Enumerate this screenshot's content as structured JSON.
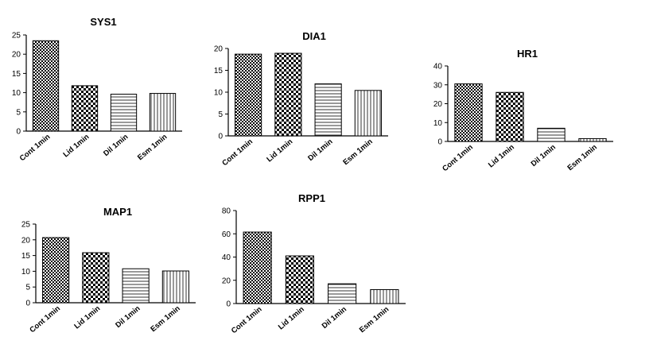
{
  "chart_data": [
    {
      "type": "bar",
      "title": "SYS1",
      "categories": [
        "Cont 1min",
        "Lid 1min",
        "Dil 1min",
        "Esm 1min"
      ],
      "values": [
        23.5,
        11.8,
        9.6,
        9.8
      ],
      "ylim": [
        0,
        25
      ],
      "yticks": [
        "0",
        "5",
        "10",
        "15",
        "20",
        "25"
      ],
      "fills": [
        "dense-check",
        "checker",
        "horizontal-lines",
        "vertical-lines"
      ],
      "grid": false
    },
    {
      "type": "bar",
      "title": "DIA1",
      "categories": [
        "Cont 1min",
        "Lid 1min",
        "Dil 1min",
        "Esm 1min"
      ],
      "values": [
        18.7,
        18.9,
        11.9,
        10.4
      ],
      "ylim": [
        0,
        20
      ],
      "yticks": [
        "0",
        "5",
        "10",
        "15",
        "20"
      ],
      "fills": [
        "dense-check",
        "checker",
        "horizontal-lines",
        "vertical-lines"
      ],
      "grid": false
    },
    {
      "type": "bar",
      "title": "HR1",
      "categories": [
        "Cont 1min",
        "Lid 1min",
        "Dil 1min",
        "Esm 1min"
      ],
      "values": [
        30.5,
        26.0,
        7.0,
        1.5
      ],
      "ylim": [
        0,
        40
      ],
      "yticks": [
        "0",
        "10",
        "20",
        "30",
        "40"
      ],
      "fills": [
        "dense-check",
        "checker",
        "horizontal-lines",
        "vertical-lines"
      ],
      "grid": false
    },
    {
      "type": "bar",
      "title": "MAP1",
      "categories": [
        "Cont 1min",
        "Lid 1min",
        "Dil 1min",
        "Esm 1min"
      ],
      "values": [
        20.7,
        15.9,
        10.8,
        10.1
      ],
      "ylim": [
        0,
        25
      ],
      "yticks": [
        "0",
        "5",
        "10",
        "15",
        "20",
        "25"
      ],
      "fills": [
        "dense-check",
        "checker",
        "horizontal-lines",
        "vertical-lines"
      ],
      "grid": false
    },
    {
      "type": "bar",
      "title": "RPP1",
      "categories": [
        "Cont 1min",
        "Lid 1min",
        "Dil 1min",
        "Esm 1min"
      ],
      "values": [
        61.5,
        41.0,
        17.0,
        12.0
      ],
      "ylim": [
        0,
        80
      ],
      "yticks": [
        "0",
        "20",
        "40",
        "60",
        "80"
      ],
      "fills": [
        "dense-check",
        "checker",
        "horizontal-lines",
        "vertical-lines"
      ],
      "grid": false
    }
  ]
}
